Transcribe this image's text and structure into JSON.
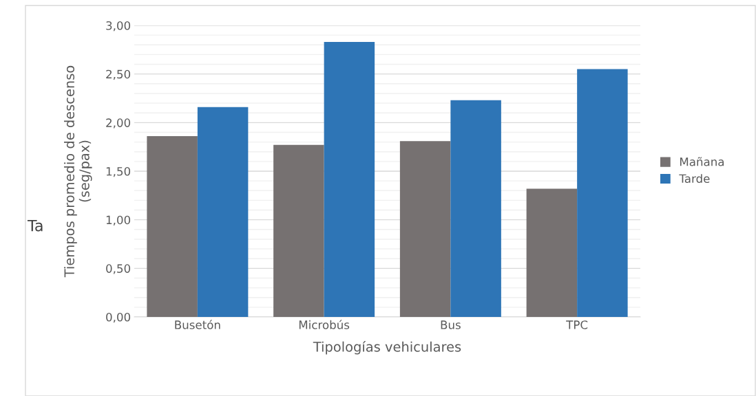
{
  "chart_data": {
    "type": "bar",
    "xlabel": "Tipologías vehiculares",
    "ylabel": "Tiempos promedio de descenso\n(seg/pax)",
    "categories": [
      "Busetón",
      "Microbús",
      "Bus",
      "TPC"
    ],
    "series": [
      {
        "name": "Mañana",
        "color": "#767171",
        "values": [
          1.86,
          1.77,
          1.81,
          1.32
        ]
      },
      {
        "name": "Tarde",
        "color": "#2e75b6",
        "values": [
          2.16,
          2.83,
          2.23,
          2.55
        ]
      }
    ],
    "ylim": [
      0,
      3
    ],
    "yticks": [
      {
        "value": 0,
        "label": "0,00"
      },
      {
        "value": 0.1,
        "label": null
      },
      {
        "value": 0.2,
        "label": null
      },
      {
        "value": 0.3,
        "label": null
      },
      {
        "value": 0.4,
        "label": null
      },
      {
        "value": 0.5,
        "label": "0,50"
      },
      {
        "value": 0.6,
        "label": null
      },
      {
        "value": 0.7,
        "label": null
      },
      {
        "value": 0.8,
        "label": null
      },
      {
        "value": 0.9,
        "label": null
      },
      {
        "value": 1,
        "label": "1,00"
      },
      {
        "value": 1.1,
        "label": null
      },
      {
        "value": 1.2,
        "label": null
      },
      {
        "value": 1.3,
        "label": null
      },
      {
        "value": 1.4,
        "label": null
      },
      {
        "value": 1.5,
        "label": "1,50"
      },
      {
        "value": 1.6,
        "label": null
      },
      {
        "value": 1.7,
        "label": null
      },
      {
        "value": 1.8,
        "label": null
      },
      {
        "value": 1.9,
        "label": null
      },
      {
        "value": 2,
        "label": "2,00"
      },
      {
        "value": 2.1,
        "label": null
      },
      {
        "value": 2.2,
        "label": null
      },
      {
        "value": 2.3,
        "label": null
      },
      {
        "value": 2.4,
        "label": null
      },
      {
        "value": 2.5,
        "label": "2,50"
      },
      {
        "value": 2.6,
        "label": null
      },
      {
        "value": 2.7,
        "label": null
      },
      {
        "value": 2.8,
        "label": null
      },
      {
        "value": 2.9,
        "label": null
      },
      {
        "value": 3,
        "label": "3,00"
      }
    ],
    "grid": "y",
    "legend": "right",
    "annotations": [
      "Ta"
    ]
  }
}
